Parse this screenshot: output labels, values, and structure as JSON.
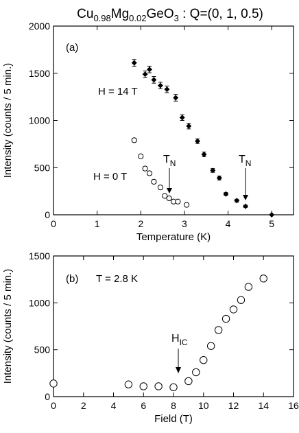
{
  "title": {
    "text": "Cu0.98Mg0.02GeO3 : Q=(0, 1, 0.5)",
    "base": "Cu",
    "sub1": "0.98",
    "mid1": "Mg",
    "sub2": "0.02",
    "mid2": "GeO",
    "sub3": "3",
    "tail": " : Q=(0, 1, 0.5)"
  },
  "chart_data": [
    {
      "type": "scatter",
      "panel_label": "(a)",
      "xlabel": "Temperature (K)",
      "ylabel": "Intensity (counts / 5 min.)",
      "xlim": [
        0,
        5.5
      ],
      "ylim": [
        0,
        2000
      ],
      "xticks": [
        0,
        1,
        2,
        3,
        4,
        5
      ],
      "yticks": [
        0,
        500,
        1000,
        1500,
        2000
      ],
      "series": [
        {
          "name": "H = 14 T",
          "marker": "filled-diamond",
          "x": [
            1.85,
            2.1,
            2.2,
            2.3,
            2.45,
            2.6,
            2.8,
            2.95,
            3.1,
            3.3,
            3.45,
            3.65,
            3.8,
            3.95,
            4.2,
            4.4,
            5.0
          ],
          "y": [
            1610,
            1490,
            1540,
            1430,
            1370,
            1330,
            1240,
            1030,
            940,
            780,
            640,
            470,
            390,
            220,
            150,
            90,
            0
          ],
          "err": [
            35,
            35,
            35,
            35,
            35,
            35,
            35,
            30,
            30,
            25,
            25,
            20,
            20,
            15,
            15,
            12,
            0
          ]
        },
        {
          "name": "H = 0 T",
          "marker": "open-circle-errorbar",
          "x": [
            1.85,
            2.0,
            2.1,
            2.2,
            2.3,
            2.45,
            2.55,
            2.65,
            2.75,
            2.85,
            3.05
          ],
          "y": [
            790,
            620,
            490,
            440,
            350,
            290,
            200,
            175,
            140,
            140,
            105
          ],
          "err": [
            20,
            20,
            20,
            20,
            20,
            20,
            15,
            15,
            15,
            15,
            15
          ]
        }
      ],
      "annotations": [
        {
          "text": "TN",
          "main": "T",
          "sub": "N",
          "x": 2.7,
          "y": 500
        },
        {
          "text": "TN",
          "main": "T",
          "sub": "N",
          "x": 4.4,
          "y": 500
        }
      ]
    },
    {
      "type": "scatter",
      "panel_label": "(b)",
      "condition": "T = 2.8 K",
      "xlabel": "Field (T)",
      "ylabel": "Intensity (counts / 5 min.)",
      "xlim": [
        0,
        16
      ],
      "ylim": [
        0,
        1500
      ],
      "xticks": [
        0,
        2,
        4,
        6,
        8,
        10,
        12,
        14,
        16
      ],
      "yticks": [
        0,
        500,
        1000,
        1500
      ],
      "series": [
        {
          "marker": "open-circle",
          "x": [
            0,
            5,
            6,
            7,
            8,
            9,
            9.5,
            10,
            10.5,
            11,
            11.5,
            12,
            12.5,
            13,
            14
          ],
          "y": [
            140,
            130,
            110,
            110,
            100,
            165,
            260,
            390,
            540,
            710,
            830,
            930,
            1030,
            1170,
            1260
          ]
        }
      ],
      "annotations": [
        {
          "text": "HIC",
          "main": "H",
          "sub": "IC",
          "x": 8.3,
          "y": 100
        }
      ]
    }
  ]
}
